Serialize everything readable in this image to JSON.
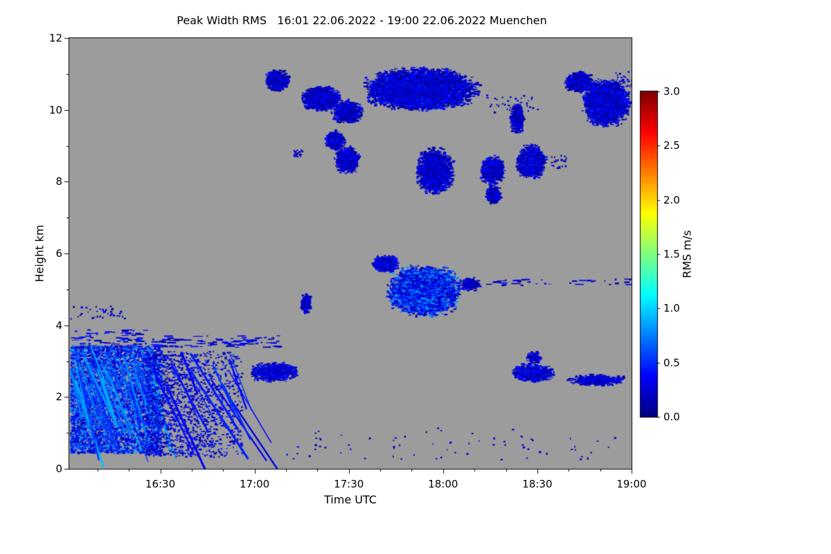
{
  "chart_data": {
    "type": "heatmap",
    "title": "Peak Width RMS   16:01 22.06.2022 - 19:00 22.06.2022 Muenchen",
    "variable": "Peak Width RMS",
    "site": "Muenchen",
    "start": "16:01 22.06.2022",
    "end": "19:00 22.06.2022",
    "xlabel": "Time UTC",
    "ylabel": "Height km",
    "x_range_hours": [
      16.0167,
      19.0
    ],
    "x_ticks": [
      {
        "hour": 16.5,
        "label": "16:30"
      },
      {
        "hour": 17.0,
        "label": "17:00"
      },
      {
        "hour": 17.5,
        "label": "17:30"
      },
      {
        "hour": 18.0,
        "label": "18:00"
      },
      {
        "hour": 18.5,
        "label": "18:30"
      },
      {
        "hour": 19.0,
        "label": "19:00"
      }
    ],
    "ylim_km": [
      0,
      12
    ],
    "y_ticks": [
      {
        "km": 0,
        "label": "0"
      },
      {
        "km": 2,
        "label": "2"
      },
      {
        "km": 4,
        "label": "4"
      },
      {
        "km": 6,
        "label": "6"
      },
      {
        "km": 8,
        "label": "8"
      },
      {
        "km": 10,
        "label": "10"
      },
      {
        "km": 12,
        "label": "12"
      }
    ],
    "colorbar": {
      "label": "RMS m/s",
      "min": 0.0,
      "max": 3.0,
      "tick_values": [
        0.0,
        0.5,
        1.0,
        1.5,
        2.0,
        2.5,
        3.0
      ],
      "tick_labels": [
        "0.0",
        "0.5",
        "1.0",
        "1.5",
        "2.0",
        "2.5",
        "3.0"
      ],
      "colormap": "jet"
    },
    "no_data_color": "#9c9c9c",
    "regions": [
      {
        "name": "cirrus-patch-a",
        "type": "blob",
        "t0": 17.05,
        "t1": 17.19,
        "h0": 10.5,
        "h1": 11.15,
        "vmin": 0.05,
        "vmax": 0.45,
        "density": 0.85
      },
      {
        "name": "cirrus-patch-b",
        "type": "blob",
        "t0": 17.24,
        "t1": 17.46,
        "h0": 9.95,
        "h1": 10.68,
        "vmin": 0.05,
        "vmax": 0.45,
        "density": 0.85
      },
      {
        "name": "cirrus-patch-b2",
        "type": "blob",
        "t0": 17.4,
        "t1": 17.58,
        "h0": 9.6,
        "h1": 10.3,
        "vmin": 0.05,
        "vmax": 0.45,
        "density": 0.7
      },
      {
        "name": "cirrus-band-main",
        "type": "blob",
        "t0": 17.56,
        "t1": 18.2,
        "h0": 9.95,
        "h1": 11.2,
        "vmin": 0.05,
        "vmax": 0.5,
        "density": 0.95
      },
      {
        "name": "cirrus-scatter",
        "type": "dots",
        "t0": 18.2,
        "t1": 18.5,
        "h0": 9.95,
        "h1": 10.45,
        "vmin": 0.05,
        "vmax": 0.4,
        "density": 0.06
      },
      {
        "name": "cirrus-dash",
        "type": "blob",
        "t0": 18.35,
        "t1": 18.43,
        "h0": 9.3,
        "h1": 10.25,
        "vmin": 0.05,
        "vmax": 0.4,
        "density": 0.7
      },
      {
        "name": "cirrus-patch-right-a",
        "type": "blob",
        "t0": 18.64,
        "t1": 18.8,
        "h0": 10.45,
        "h1": 11.1,
        "vmin": 0.05,
        "vmax": 0.45,
        "density": 0.85
      },
      {
        "name": "cirrus-patch-right-b",
        "type": "blob",
        "t0": 18.73,
        "t1": 19.0,
        "h0": 9.5,
        "h1": 10.9,
        "vmin": 0.05,
        "vmax": 0.5,
        "density": 0.9
      },
      {
        "name": "cirrus-topright-dots",
        "type": "dots",
        "t0": 18.9,
        "t1": 19.0,
        "h0": 10.6,
        "h1": 11.1,
        "vmin": 0.05,
        "vmax": 0.4,
        "density": 0.15
      },
      {
        "name": "cirrus-mid-diag-a",
        "type": "blob",
        "t0": 17.37,
        "t1": 17.48,
        "h0": 8.85,
        "h1": 9.45,
        "vmin": 0.05,
        "vmax": 0.45,
        "density": 0.75
      },
      {
        "name": "cirrus-mid-diag-b",
        "type": "blob",
        "t0": 17.42,
        "t1": 17.56,
        "h0": 8.2,
        "h1": 9.0,
        "vmin": 0.05,
        "vmax": 0.45,
        "density": 0.7
      },
      {
        "name": "cirrus-mid-dot",
        "type": "dots",
        "t0": 17.2,
        "t1": 17.25,
        "h0": 8.7,
        "h1": 8.9,
        "vmin": 0.05,
        "vmax": 0.35,
        "density": 0.6
      },
      {
        "name": "cirrus-mid-c",
        "type": "blob",
        "t0": 17.85,
        "t1": 18.06,
        "h0": 7.6,
        "h1": 9.0,
        "vmin": 0.05,
        "vmax": 0.45,
        "density": 0.7
      },
      {
        "name": "cirrus-mid-d",
        "type": "blob",
        "t0": 18.19,
        "t1": 18.33,
        "h0": 7.9,
        "h1": 8.75,
        "vmin": 0.05,
        "vmax": 0.45,
        "density": 0.75
      },
      {
        "name": "cirrus-mid-d-tail",
        "type": "blob",
        "t0": 18.22,
        "t1": 18.31,
        "h0": 7.35,
        "h1": 7.95,
        "vmin": 0.05,
        "vmax": 0.4,
        "density": 0.6
      },
      {
        "name": "cirrus-mid-e",
        "type": "blob",
        "t0": 18.38,
        "t1": 18.55,
        "h0": 8.05,
        "h1": 9.05,
        "vmin": 0.05,
        "vmax": 0.5,
        "density": 0.8
      },
      {
        "name": "cirrus-mid-e-dots",
        "type": "dots",
        "t0": 18.57,
        "t1": 18.65,
        "h0": 8.4,
        "h1": 8.75,
        "vmin": 0.05,
        "vmax": 0.35,
        "density": 0.2
      },
      {
        "name": "alto-blob-top",
        "type": "blob",
        "t0": 17.62,
        "t1": 17.77,
        "h0": 5.45,
        "h1": 5.97,
        "vmin": 0.08,
        "vmax": 0.5,
        "density": 0.8
      },
      {
        "name": "alto-blob-main",
        "type": "blob",
        "t0": 17.69,
        "t1": 18.1,
        "h0": 4.2,
        "h1": 5.7,
        "vmin": 0.1,
        "vmax": 0.9,
        "density": 0.85
      },
      {
        "name": "alto-blob-right",
        "type": "blob",
        "t0": 18.08,
        "t1": 18.2,
        "h0": 4.95,
        "h1": 5.35,
        "vmin": 0.08,
        "vmax": 0.4,
        "density": 0.5
      },
      {
        "name": "alto-dotted-line",
        "type": "layer",
        "t0": 18.2,
        "t1": 19.0,
        "h0": 5.12,
        "h1": 5.32,
        "vmin": 0.08,
        "vmax": 0.4,
        "density": 0.15
      },
      {
        "name": "alto-dash",
        "type": "blob",
        "t0": 17.24,
        "t1": 17.3,
        "h0": 4.3,
        "h1": 4.9,
        "vmin": 0.08,
        "vmax": 0.4,
        "density": 0.65
      },
      {
        "name": "low-top-layers",
        "type": "layer",
        "t0": 16.02,
        "t1": 16.42,
        "h0": 3.3,
        "h1": 3.9,
        "vmin": 0.1,
        "vmax": 0.5,
        "density": 0.6
      },
      {
        "name": "low-high-dots",
        "type": "dots",
        "t0": 16.02,
        "t1": 16.32,
        "h0": 4.2,
        "h1": 4.55,
        "vmin": 0.08,
        "vmax": 0.35,
        "density": 0.1
      },
      {
        "name": "low-main-mass",
        "type": "streaks",
        "t0": 16.02,
        "t1": 16.5,
        "h0": 0.45,
        "h1": 3.45,
        "vmin": 0.15,
        "vmax": 0.95,
        "density": 0.9,
        "slant": 0.35,
        "fade": 0.3
      },
      {
        "name": "low-trailing-streaks",
        "type": "streaks",
        "t0": 16.42,
        "t1": 16.93,
        "h0": 0.35,
        "h1": 3.3,
        "vmin": 0.1,
        "vmax": 0.55,
        "density": 0.3,
        "slant": 0.5,
        "fade": 0.75
      },
      {
        "name": "low-layer-line",
        "type": "layer",
        "t0": 16.45,
        "t1": 17.14,
        "h0": 3.4,
        "h1": 3.72,
        "vmin": 0.08,
        "vmax": 0.45,
        "density": 0.35
      },
      {
        "name": "low-patch-17utc",
        "type": "blob",
        "t0": 16.97,
        "t1": 17.23,
        "h0": 2.4,
        "h1": 3.0,
        "vmin": 0.08,
        "vmax": 0.5,
        "density": 0.6
      },
      {
        "name": "low-patch-right-a",
        "type": "blob",
        "t0": 18.35,
        "t1": 18.6,
        "h0": 2.4,
        "h1": 2.95,
        "vmin": 0.08,
        "vmax": 0.5,
        "density": 0.55
      },
      {
        "name": "low-patch-right-b",
        "type": "blob",
        "t0": 18.44,
        "t1": 18.52,
        "h0": 2.9,
        "h1": 3.3,
        "vmin": 0.08,
        "vmax": 0.4,
        "density": 0.5
      },
      {
        "name": "low-patch-right-c",
        "type": "blob",
        "t0": 18.65,
        "t1": 18.98,
        "h0": 2.3,
        "h1": 2.65,
        "vmin": 0.08,
        "vmax": 0.45,
        "density": 0.45
      },
      {
        "name": "scattered-bottom-dots",
        "type": "dots",
        "t0": 17.15,
        "t1": 18.92,
        "h0": 0.25,
        "h1": 1.15,
        "vmin": 0.08,
        "vmax": 0.35,
        "density": 0.012
      }
    ]
  }
}
